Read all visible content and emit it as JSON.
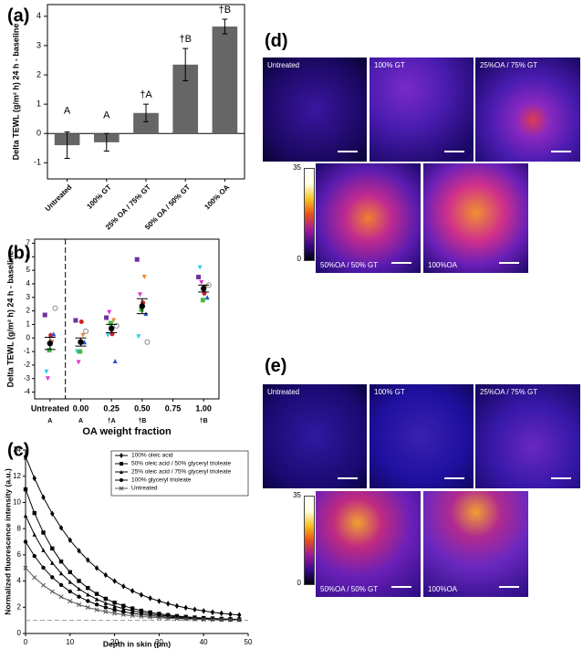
{
  "chart_data": [
    {
      "type": "bar",
      "panel": "(a)",
      "y_label": "Delta TEWL (g/m² h) 24 h - baseline",
      "categories": [
        "Untreated",
        "100% GT",
        "25% OA / 75% GT",
        "50% OA / 50% GT",
        "100% OA"
      ],
      "values": [
        -0.4,
        -0.3,
        0.7,
        2.35,
        3.65
      ],
      "errors": [
        0.45,
        0.3,
        0.3,
        0.55,
        0.25
      ],
      "letters": [
        "A",
        "A",
        "†A",
        "†B",
        "†B"
      ],
      "color": "#666666",
      "ylim": [
        -1.55,
        4.4
      ],
      "yticks": [
        -1,
        0,
        1,
        2,
        3,
        4
      ]
    },
    {
      "type": "scatter",
      "panel": "(b)",
      "y_label": "Delta TEWL (g/m² h) 24 h - baseline",
      "x_label": "OA weight fraction",
      "categories": [
        "Untreated",
        "0.00",
        "0.25",
        "0.50",
        "0.75",
        "1.00"
      ],
      "letters": [
        "A",
        "A",
        "†A",
        "†B",
        null,
        "†B"
      ],
      "series": [
        {
          "color": "#7030a0",
          "marker": "square",
          "values": [
            1.7,
            1.3,
            1.5,
            5.8,
            null,
            4.5
          ]
        },
        {
          "color": "#33ccee",
          "marker": "triangle-down",
          "values": [
            -2.5,
            -1.0,
            0.2,
            0.1,
            null,
            5.2
          ]
        },
        {
          "color": "#dd33cc",
          "marker": "triangle-down",
          "values": [
            -3.0,
            -1.8,
            1.9,
            3.2,
            null,
            4.1
          ]
        },
        {
          "color": "#44bb44",
          "marker": "square",
          "values": [
            -0.9,
            -1.0,
            1.1,
            2.1,
            null,
            2.8
          ]
        },
        {
          "color": "#cc2222",
          "marker": "circle",
          "values": [
            0.2,
            1.2,
            0.3,
            2.6,
            null,
            3.3
          ]
        },
        {
          "color": "#ee8833",
          "marker": "triangle-down",
          "values": [
            -0.3,
            0.2,
            1.3,
            4.5,
            null,
            3.8
          ]
        },
        {
          "color": "#2255cc",
          "marker": "triangle-up",
          "values": [
            0.3,
            -0.3,
            -1.7,
            1.8,
            null,
            3.0
          ]
        },
        {
          "color": "#888888",
          "marker": "open-circle",
          "values": [
            2.2,
            0.5,
            0.9,
            -0.3,
            null,
            3.9
          ]
        }
      ],
      "mean": {
        "color": "#000000",
        "values": [
          -0.4,
          -0.3,
          0.7,
          2.35,
          null,
          3.65
        ],
        "errors": [
          0.45,
          0.3,
          0.3,
          0.55,
          null,
          0.25
        ]
      },
      "ylim": [
        -4.5,
        7.3
      ],
      "yticks": [
        -4,
        -3,
        -2,
        -1,
        0,
        1,
        2,
        3,
        4,
        5,
        6,
        7
      ]
    },
    {
      "type": "line",
      "panel": "(c)",
      "y_label": "Normalized fluorescence intensity (a.u.)",
      "x_label": "Depth in skin (μm)",
      "x": [
        0,
        2,
        4,
        6,
        8,
        10,
        12,
        14,
        16,
        18,
        20,
        22,
        24,
        26,
        28,
        30,
        32,
        34,
        36,
        38,
        40,
        42,
        44,
        46,
        48
      ],
      "series": [
        {
          "name": "100% oleic acid",
          "color": "#000000",
          "marker": "diamond",
          "values": [
            13.5,
            11.84,
            10.39,
            9.14,
            8.06,
            7.12,
            6.31,
            5.6,
            4.99,
            4.46,
            4.0,
            3.6,
            3.25,
            2.95,
            2.69,
            2.47,
            2.27,
            2.1,
            1.96,
            1.83,
            1.72,
            1.62,
            1.54,
            1.47,
            1.41
          ]
        },
        {
          "name": "50% oleic acid / 50% glyceryl trioleate",
          "color": "#000000",
          "marker": "square",
          "values": [
            11,
            9.19,
            7.7,
            6.49,
            5.49,
            4.68,
            4.01,
            3.47,
            3.02,
            2.65,
            2.35,
            2.11,
            1.91,
            1.74,
            1.61,
            1.5,
            1.41,
            1.33,
            1.27,
            1.22,
            1.18,
            1.15,
            1.12,
            1.1,
            1.08
          ]
        },
        {
          "name": "25% oleic acid / 75% glyceryl trioleate",
          "color": "#000000",
          "marker": "triangle-up",
          "values": [
            9,
            7.55,
            6.36,
            5.39,
            4.59,
            3.94,
            3.41,
            2.97,
            2.62,
            2.32,
            2.08,
            1.89,
            1.73,
            1.59,
            1.49,
            1.4,
            1.33,
            1.27,
            1.22,
            1.18,
            1.15,
            1.12,
            1.1,
            1.08,
            1.07
          ]
        },
        {
          "name": "100% glyceryl trioleate",
          "color": "#000000",
          "marker": "circle",
          "values": [
            7,
            5.91,
            5.02,
            4.29,
            3.7,
            3.21,
            2.81,
            2.48,
            2.21,
            1.99,
            1.81,
            1.66,
            1.54,
            1.45,
            1.36,
            1.3,
            1.24,
            1.2,
            1.16,
            1.13,
            1.11,
            1.09,
            1.07,
            1.06,
            1.05
          ]
        },
        {
          "name": "Untreated",
          "color": "#555555",
          "marker": "cross",
          "values": [
            5,
            4.27,
            3.68,
            3.2,
            2.8,
            2.47,
            2.2,
            1.99,
            1.81,
            1.66,
            1.54,
            1.44,
            1.36,
            1.3,
            1.24,
            1.2,
            1.16,
            1.13,
            1.11,
            1.09,
            1.07,
            1.06,
            1.05,
            1.04,
            1.03
          ]
        }
      ],
      "reference_line": 1,
      "xlim": [
        0,
        50
      ],
      "xticks": [
        0,
        10,
        20,
        30,
        40,
        50
      ],
      "ylim": [
        0,
        14
      ],
      "yticks": [
        0,
        2,
        4,
        6,
        8,
        10,
        12,
        14
      ],
      "legend": "upper-right"
    }
  ],
  "image_panels": [
    {
      "panel": "(d)",
      "top": [
        "Untreated",
        "100% GT",
        "25%OA / 75% GT"
      ],
      "bottom": [
        "50%OA / 50% GT",
        "100%OA"
      ],
      "colorbar_ticks": [
        35,
        0
      ]
    },
    {
      "panel": "(e)",
      "top": [
        "Untreated",
        "100% GT",
        "25%OA / 75% GT"
      ],
      "bottom": [
        "50%OA / 50% GT",
        "100%OA"
      ],
      "colorbar_ticks": [
        35,
        0
      ]
    }
  ]
}
